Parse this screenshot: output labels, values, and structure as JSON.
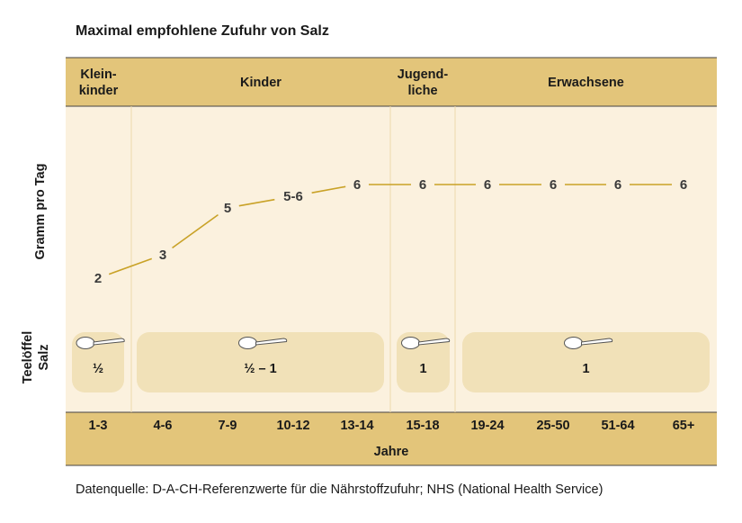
{
  "title": "Maximal empfohlene Zufuhr von Salz",
  "source": "Datenquelle: D-A-CH-Referenzwerte für die Nährstoffzufuhr; NHS (National Health Service)",
  "colors": {
    "header_band": "#e3c57a",
    "plot_bg": "#fbf1de",
    "spoon_box": "#f1e1b8",
    "line": "#c9a227",
    "divider": "#edd9ac",
    "text": "#3a3a3a"
  },
  "chart_data": {
    "type": "line",
    "title": "Maximal empfohlene Zufuhr von Salz",
    "xlabel": "Jahre",
    "ylabel": "Gramm pro Tag",
    "spoon_axis_label": [
      "Teelöffel",
      "Salz"
    ],
    "groups": [
      {
        "label": [
          "Klein-",
          "kinder"
        ],
        "span": [
          0,
          0
        ]
      },
      {
        "label": [
          "Kinder"
        ],
        "span": [
          1,
          4
        ]
      },
      {
        "label": [
          "Jugend-",
          "liche"
        ],
        "span": [
          5,
          5
        ]
      },
      {
        "label": [
          "Erwachsene"
        ],
        "span": [
          6,
          9
        ]
      }
    ],
    "categories": [
      "1-3",
      "4-6",
      "7-9",
      "10-12",
      "13-14",
      "15-18",
      "19-24",
      "25-50",
      "51-64",
      "65+"
    ],
    "values": [
      2,
      3,
      5,
      5.5,
      6,
      6,
      6,
      6,
      6,
      6
    ],
    "value_labels": [
      "2",
      "3",
      "5",
      "5-6",
      "6",
      "6",
      "6",
      "6",
      "6",
      "6"
    ],
    "ylim": [
      0,
      7
    ],
    "teaspoons": [
      {
        "label": "½",
        "span": [
          0,
          0
        ]
      },
      {
        "label": "½ – 1",
        "span": [
          1,
          4
        ]
      },
      {
        "label": "1",
        "span": [
          5,
          5
        ]
      },
      {
        "label": "1",
        "span": [
          6,
          9
        ]
      }
    ]
  }
}
